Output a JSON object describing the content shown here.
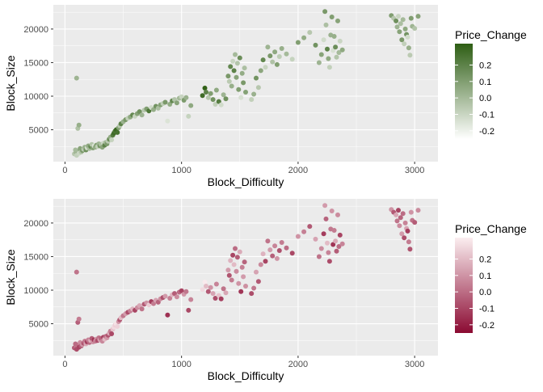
{
  "chart_data": [
    {
      "type": "scatter",
      "xlabel": "Block_Difficulty",
      "ylabel": "Block_Size",
      "xlim": [
        -100,
        3200
      ],
      "ylim": [
        250,
        23600
      ],
      "x_ticks": [
        0,
        1000,
        2000,
        3000
      ],
      "x_tick_labels": [
        "0",
        "1000",
        "2000",
        "3000"
      ],
      "y_ticks": [
        5000,
        10000,
        15000,
        20000
      ],
      "y_tick_labels": [
        "5000",
        "10000",
        "15000",
        "20000"
      ],
      "grid": true,
      "legend": {
        "title": "Price_Change",
        "position": "right",
        "range": [
          -0.25,
          0.33
        ],
        "ticks": [
          0.2,
          0.1,
          0.0,
          -0.1,
          -0.2
        ],
        "tick_labels": [
          "0.2",
          "0.1",
          "0.0",
          "-0.1",
          "-0.2"
        ],
        "low_color": "#ffffff",
        "high_color": "#2e5e14"
      },
      "points": "shared"
    },
    {
      "type": "scatter",
      "xlabel": "Block_Difficulty",
      "ylabel": "Block_Size",
      "xlim": [
        -100,
        3200
      ],
      "ylim": [
        250,
        23600
      ],
      "x_ticks": [
        0,
        1000,
        2000,
        3000
      ],
      "x_tick_labels": [
        "0",
        "1000",
        "2000",
        "3000"
      ],
      "y_ticks": [
        5000,
        10000,
        15000,
        20000
      ],
      "y_tick_labels": [
        "5000",
        "10000",
        "15000",
        "20000"
      ],
      "grid": true,
      "legend": {
        "title": "Price_Change",
        "position": "right",
        "range": [
          -0.25,
          0.33
        ],
        "ticks": [
          0.2,
          0.1,
          0.0,
          -0.1,
          -0.2
        ],
        "tick_labels": [
          "0.2",
          "0.1",
          "0.0",
          "-0.1",
          "-0.2"
        ],
        "low_color": "#8b0a32",
        "high_color": "#fbeef0"
      },
      "points": "shared"
    }
  ],
  "points": [
    [
      80,
      1400,
      -0.05
    ],
    [
      95,
      1600,
      0.02
    ],
    [
      100,
      1200,
      -0.08
    ],
    [
      110,
      1800,
      0.05
    ],
    [
      120,
      1500,
      -0.1
    ],
    [
      90,
      2000,
      0.0
    ],
    [
      130,
      2200,
      0.08
    ],
    [
      140,
      1700,
      -0.03
    ],
    [
      150,
      1900,
      0.12
    ],
    [
      160,
      2100,
      -0.06
    ],
    [
      170,
      2400,
      0.03
    ],
    [
      180,
      2000,
      0.15
    ],
    [
      190,
      2300,
      -0.12
    ],
    [
      200,
      2600,
      0.06
    ],
    [
      210,
      2200,
      0.0
    ],
    [
      220,
      2500,
      0.18
    ],
    [
      230,
      2800,
      -0.04
    ],
    [
      240,
      2300,
      0.09
    ],
    [
      250,
      2600,
      -0.15
    ],
    [
      260,
      2400,
      0.04
    ],
    [
      270,
      2700,
      0.1
    ],
    [
      280,
      2500,
      -0.08
    ],
    [
      290,
      2900,
      0.02
    ],
    [
      300,
      2600,
      0.14
    ],
    [
      310,
      2800,
      -0.02
    ],
    [
      320,
      2400,
      0.07
    ],
    [
      330,
      3000,
      -0.1
    ],
    [
      340,
      2700,
      0.2
    ],
    [
      350,
      3100,
      0.0
    ],
    [
      360,
      2900,
      0.11
    ],
    [
      370,
      3300,
      -0.06
    ],
    [
      380,
      3600,
      0.16
    ],
    [
      390,
      3900,
      0.05
    ],
    [
      400,
      3500,
      -0.09
    ],
    [
      410,
      4200,
      0.22
    ],
    [
      420,
      4500,
      0.28
    ],
    [
      430,
      4800,
      0.25
    ],
    [
      440,
      5000,
      0.3
    ],
    [
      450,
      4600,
      0.26
    ],
    [
      460,
      5300,
      0.1
    ],
    [
      470,
      5600,
      -0.05
    ],
    [
      480,
      5900,
      0.2
    ],
    [
      500,
      6200,
      0.03
    ],
    [
      520,
      6500,
      0.12
    ],
    [
      540,
      6700,
      -0.08
    ],
    [
      560,
      6900,
      0.06
    ],
    [
      580,
      7200,
      0.18
    ],
    [
      600,
      7000,
      -0.1
    ],
    [
      620,
      7400,
      0.08
    ],
    [
      640,
      7700,
      0.15
    ],
    [
      660,
      7200,
      0.02
    ],
    [
      680,
      7900,
      -0.05
    ],
    [
      700,
      8100,
      0.1
    ],
    [
      720,
      7800,
      0.24
    ],
    [
      740,
      8300,
      -0.12
    ],
    [
      760,
      8000,
      0.04
    ],
    [
      780,
      8500,
      0.14
    ],
    [
      800,
      8200,
      -0.02
    ],
    [
      820,
      8700,
      0.09
    ],
    [
      840,
      8900,
      -0.07
    ],
    [
      860,
      9100,
      0.12
    ],
    [
      880,
      6300,
      -0.15
    ],
    [
      900,
      8800,
      0.05
    ],
    [
      920,
      9300,
      0.18
    ],
    [
      940,
      9500,
      -0.04
    ],
    [
      960,
      9000,
      0.08
    ],
    [
      980,
      9700,
      0.0
    ],
    [
      1000,
      9900,
      -0.1
    ],
    [
      1020,
      9400,
      0.11
    ],
    [
      1040,
      9800,
      0.03
    ],
    [
      1060,
      7000,
      -0.09
    ],
    [
      1080,
      8600,
      0.06
    ],
    [
      100,
      12700,
      0.02
    ],
    [
      110,
      5200,
      -0.03
    ],
    [
      120,
      5700,
      0.04
    ],
    [
      1180,
      10100,
      0.28
    ],
    [
      1200,
      11200,
      0.32
    ],
    [
      1210,
      10600,
      0.2
    ],
    [
      1230,
      9800,
      -0.05
    ],
    [
      1250,
      10400,
      0.1
    ],
    [
      1270,
      9500,
      0.14
    ],
    [
      1290,
      8800,
      -0.08
    ],
    [
      1300,
      10900,
      0.06
    ],
    [
      1320,
      9200,
      0.22
    ],
    [
      1340,
      8700,
      -0.12
    ],
    [
      1360,
      10200,
      0.02
    ],
    [
      1380,
      9600,
      0.15
    ],
    [
      1400,
      13000,
      0.12
    ],
    [
      1410,
      12200,
      -0.06
    ],
    [
      1420,
      14400,
      0.18
    ],
    [
      1430,
      11500,
      0.04
    ],
    [
      1440,
      15200,
      -0.1
    ],
    [
      1450,
      13800,
      0.2
    ],
    [
      1460,
      16200,
      0.0
    ],
    [
      1470,
      12800,
      0.08
    ],
    [
      1480,
      14900,
      -0.04
    ],
    [
      1490,
      11000,
      0.1
    ],
    [
      1500,
      15700,
      0.16
    ],
    [
      1510,
      9800,
      -0.14
    ],
    [
      1520,
      13400,
      0.05
    ],
    [
      1530,
      12000,
      0.12
    ],
    [
      1540,
      14200,
      -0.02
    ],
    [
      1550,
      10600,
      0.09
    ],
    [
      1600,
      9500,
      -0.08
    ],
    [
      1620,
      10300,
      0.03
    ],
    [
      1640,
      12700,
      0.14
    ],
    [
      1660,
      11300,
      -0.05
    ],
    [
      1680,
      13800,
      0.07
    ],
    [
      1700,
      15400,
      0.18
    ],
    [
      1720,
      14300,
      -0.1
    ],
    [
      1740,
      17300,
      0.02
    ],
    [
      1760,
      16000,
      0.12
    ],
    [
      1780,
      15100,
      -0.03
    ],
    [
      1800,
      16600,
      0.06
    ],
    [
      1820,
      14700,
      0.1
    ],
    [
      1840,
      15900,
      -0.07
    ],
    [
      1860,
      17100,
      0.04
    ],
    [
      1900,
      16300,
      0.0
    ],
    [
      1950,
      15500,
      -0.09
    ],
    [
      2000,
      18000,
      0.1
    ],
    [
      2050,
      18700,
      0.05
    ],
    [
      2100,
      19500,
      -0.05
    ],
    [
      2150,
      17600,
      0.14
    ],
    [
      2180,
      15000,
      0.02
    ],
    [
      2200,
      16200,
      0.08
    ],
    [
      2220,
      18400,
      -0.12
    ],
    [
      2230,
      22600,
      0.12
    ],
    [
      2240,
      20600,
      -0.02
    ],
    [
      2250,
      17000,
      0.2
    ],
    [
      2260,
      15600,
      0.06
    ],
    [
      2270,
      14300,
      -0.08
    ],
    [
      2280,
      19100,
      0.03
    ],
    [
      2290,
      21800,
      0.1
    ],
    [
      2300,
      16800,
      -0.14
    ],
    [
      2310,
      18900,
      0.04
    ],
    [
      2320,
      17300,
      0.16
    ],
    [
      2330,
      15800,
      -0.04
    ],
    [
      2340,
      21200,
      0.08
    ],
    [
      2350,
      16500,
      0.0
    ],
    [
      2360,
      18200,
      -0.1
    ],
    [
      2380,
      16900,
      0.06
    ],
    [
      2800,
      22000,
      0.1
    ],
    [
      2820,
      21600,
      -0.05
    ],
    [
      2840,
      21200,
      0.15
    ],
    [
      2850,
      20300,
      0.02
    ],
    [
      2860,
      21900,
      -0.1
    ],
    [
      2870,
      19600,
      0.08
    ],
    [
      2880,
      20800,
      -0.02
    ],
    [
      2890,
      18400,
      0.12
    ],
    [
      2900,
      21400,
      0.0
    ],
    [
      2910,
      17800,
      -0.08
    ],
    [
      2920,
      20000,
      0.06
    ],
    [
      2930,
      19200,
      0.14
    ],
    [
      2940,
      18800,
      -0.12
    ],
    [
      2950,
      17200,
      0.04
    ],
    [
      2960,
      16100,
      -0.06
    ],
    [
      2970,
      21600,
      0.1
    ],
    [
      2980,
      20400,
      0.02
    ],
    [
      3000,
      20100,
      -0.04
    ],
    [
      3030,
      21900,
      0.08
    ]
  ]
}
